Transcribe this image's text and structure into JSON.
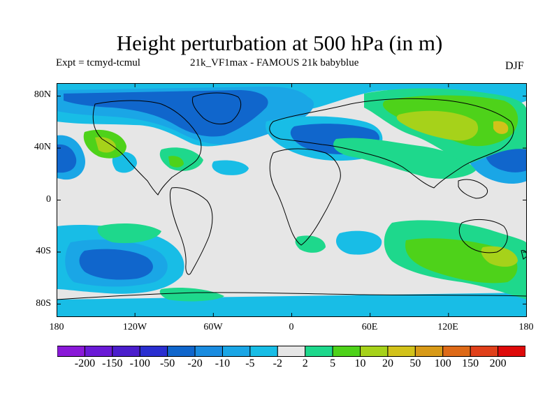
{
  "header": {
    "title": "Height perturbation at 500 hPa (in m)",
    "expt": "Expt = tcmyd-tcmul",
    "run": "21k_VF1max - FAMOUS 21k babyblue",
    "season": "DJF"
  },
  "axes": {
    "lat_labels": [
      "80N",
      "40N",
      "0",
      "40S",
      "80S"
    ],
    "lat_values": [
      80,
      40,
      0,
      -40,
      -80
    ],
    "lon_labels": [
      "180",
      "120W",
      "60W",
      "0",
      "60E",
      "120E",
      "180"
    ],
    "lon_values": [
      -180,
      -120,
      -60,
      0,
      60,
      120,
      180
    ]
  },
  "colorbar": {
    "labels": [
      "-200",
      "-150",
      "-100",
      "-50",
      "-20",
      "-10",
      "-5",
      "-2",
      "2",
      "5",
      "10",
      "20",
      "50",
      "100",
      "150",
      "200"
    ],
    "colors": [
      "#8a19d8",
      "#6a1ad6",
      "#4b1ecc",
      "#2a2fd0",
      "#1066cc",
      "#1a8ce0",
      "#1aa6e6",
      "#18bde6",
      "#e6e6e6",
      "#1ed88c",
      "#4ed21a",
      "#a6d21a",
      "#d2c21a",
      "#d89a18",
      "#de6a18",
      "#e0401a",
      "#de0a0a"
    ],
    "levels": [
      -200,
      -150,
      -100,
      -50,
      -20,
      -10,
      -5,
      -2,
      2,
      5,
      10,
      20,
      50,
      100,
      150,
      200
    ]
  },
  "map_colors": {
    "background": "#e6e6e6",
    "neg_light": "#18bde6",
    "neg_mid": "#1aa6e6",
    "neg_strong": "#1a8ce0",
    "neg_deep": "#1066cc",
    "pos_light": "#1ed88c",
    "pos_mid": "#4ed21a",
    "pos_strong": "#a6d21a",
    "pos_deep": "#d2c21a",
    "pos_max": "#d89a18"
  }
}
